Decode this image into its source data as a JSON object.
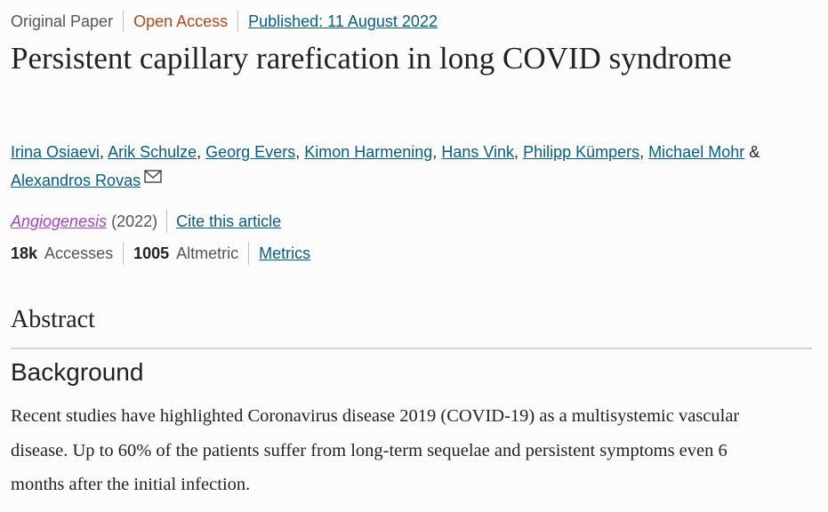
{
  "header": {
    "article_type": "Original Paper",
    "access": "Open Access",
    "published": "Published: 11 August 2022"
  },
  "title": "Persistent capillary rarefication in long COVID syndrome",
  "authors": {
    "names": [
      "Irina Osiaevi",
      "Arik Schulze",
      "Georg Evers",
      "Kimon Harmening",
      "Hans Vink",
      "Philipp Kümpers",
      "Michael Mohr",
      "Alexandros Rovas"
    ],
    "separator": ",",
    "conjunction": "&"
  },
  "journal": {
    "name": "Angiogenesis",
    "year": "(2022)",
    "cite": "Cite this article"
  },
  "metrics": {
    "accesses_value": "18k",
    "accesses_label": "Accesses",
    "altmetric_value": "1005",
    "altmetric_label": "Altmetric",
    "link": "Metrics"
  },
  "abstract": {
    "heading": "Abstract",
    "section_heading": "Background",
    "text": "Recent studies have highlighted Coronavirus disease 2019 (COVID-19) as a multisystemic vascular disease. Up to 60% of the patients suffer from long-term sequelae and persistent symptoms even 6 months after the initial infection."
  }
}
